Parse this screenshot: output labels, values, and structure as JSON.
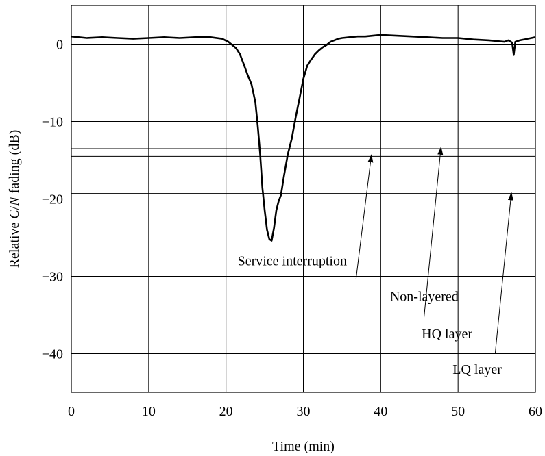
{
  "chart_data": {
    "type": "line",
    "xlabel": "Time (min)",
    "ylabel_parts": [
      "Relative ",
      "C",
      "/",
      "N",
      " fading (dB)"
    ],
    "xlim": [
      0,
      60
    ],
    "ylim": [
      -45,
      5
    ],
    "xticks": [
      0,
      10,
      20,
      30,
      40,
      50,
      60
    ],
    "yticks": [
      0,
      -10,
      -20,
      -30,
      -40
    ],
    "ytick_labels": [
      "0",
      "−10",
      "−20",
      "−30",
      "−40"
    ],
    "grid": true,
    "threshold_lines": [
      -13.5,
      -14.5,
      -19.3,
      -20.0
    ],
    "series": [
      {
        "x": [
          0,
          2,
          4,
          6,
          8,
          10,
          12,
          14,
          16,
          18,
          19.5,
          20.3,
          20.8,
          21.3,
          21.8,
          22.3,
          22.8,
          23.3,
          23.8,
          24.1,
          24.4,
          24.7,
          25.0,
          25.3,
          25.6,
          25.9,
          26.2,
          26.5,
          26.8,
          27.1,
          27.5,
          28.0,
          28.5,
          29.0,
          29.5,
          30.0,
          30.5,
          31.0,
          31.5,
          32.0,
          32.5,
          33.0,
          33.5,
          34.0,
          34.5,
          35.0,
          36.0,
          37.0,
          38.0,
          39.0,
          40.0,
          42.0,
          44.0,
          46.0,
          48.0,
          50.0,
          52.0,
          54.0,
          55.0,
          56.0,
          56.5,
          57.0,
          57.2,
          57.4,
          58.0,
          59.0,
          60.0
        ],
        "y": [
          1.0,
          0.8,
          0.9,
          0.8,
          0.7,
          0.8,
          0.9,
          0.8,
          0.9,
          0.9,
          0.7,
          0.3,
          -0.1,
          -0.5,
          -1.3,
          -2.6,
          -4.0,
          -5.2,
          -7.5,
          -10.5,
          -14.0,
          -18.5,
          -21.5,
          -24.0,
          -25.2,
          -25.4,
          -23.8,
          -21.5,
          -20.3,
          -19.5,
          -17.0,
          -14.2,
          -12.2,
          -9.5,
          -7.0,
          -4.5,
          -2.8,
          -2.0,
          -1.3,
          -0.8,
          -0.4,
          -0.1,
          0.3,
          0.5,
          0.7,
          0.8,
          0.9,
          1.0,
          1.0,
          1.1,
          1.2,
          1.1,
          1.0,
          0.9,
          0.8,
          0.8,
          0.6,
          0.5,
          0.4,
          0.3,
          0.5,
          0.2,
          -1.4,
          0.3,
          0.5,
          0.7,
          0.9
        ]
      }
    ],
    "annotations": [
      {
        "text": "Service interruption",
        "x": 21.5,
        "y": -28.6
      },
      {
        "text": "Non-layered",
        "x": 41.2,
        "y": -33.2,
        "arrow_from": [
          36.8,
          -30.4
        ],
        "arrow_to": [
          38.8,
          -14.3
        ]
      },
      {
        "text": "HQ layer",
        "x": 45.3,
        "y": -38.0,
        "arrow_from": [
          45.6,
          -35.3
        ],
        "arrow_to": [
          47.8,
          -13.3
        ]
      },
      {
        "text": "LQ layer",
        "x": 49.3,
        "y": -42.6,
        "arrow_from": [
          54.8,
          -40.0
        ],
        "arrow_to": [
          56.9,
          -19.2
        ]
      }
    ]
  }
}
